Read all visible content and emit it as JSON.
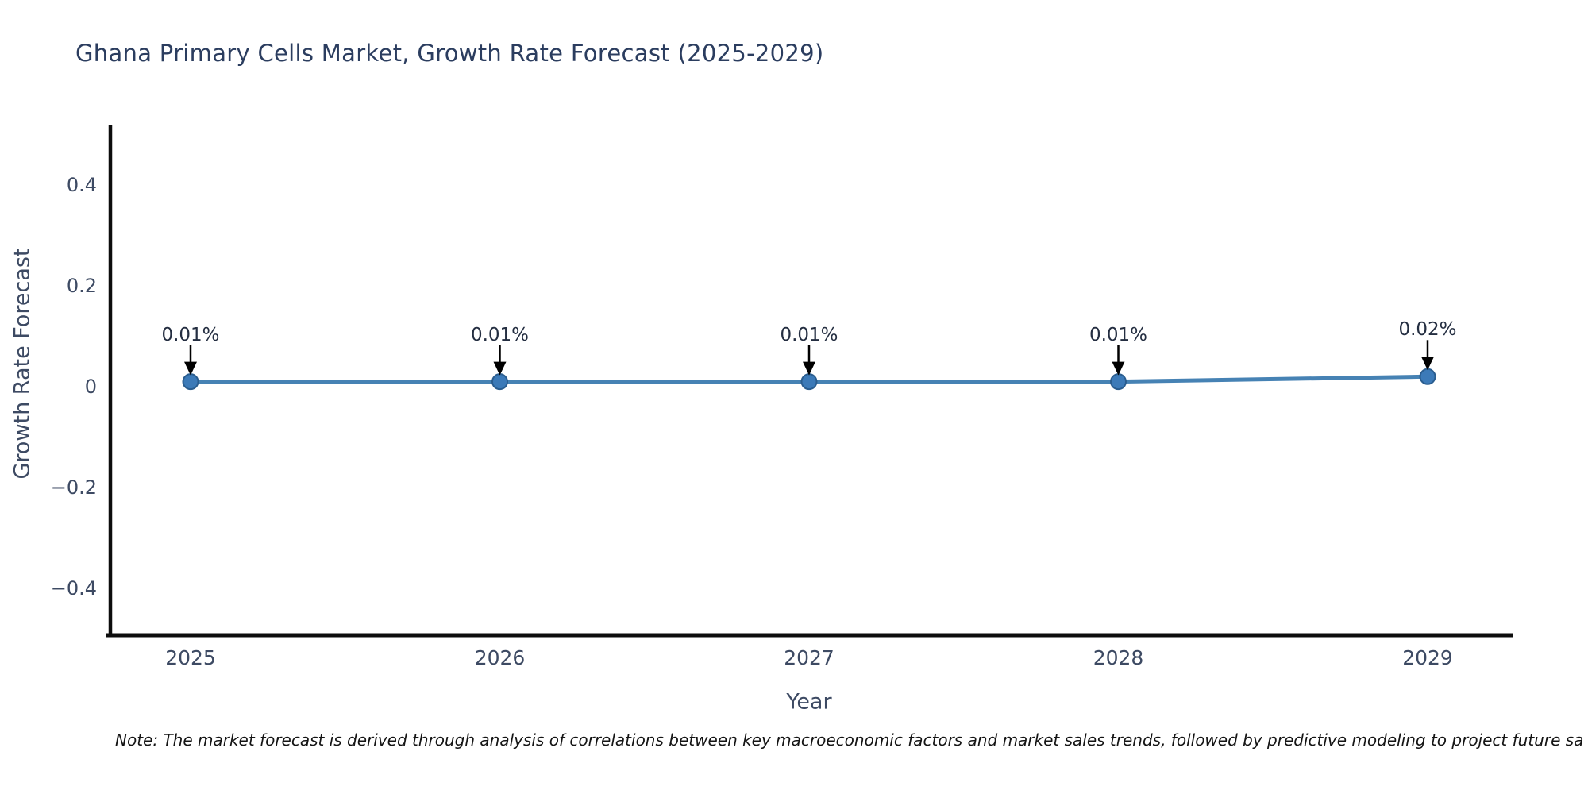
{
  "title": "Ghana Primary Cells Market, Growth Rate Forecast (2025-2029)",
  "axes": {
    "x_label": "Year",
    "y_label": "Growth Rate Forecast",
    "x_ticks": [
      "2025",
      "2026",
      "2027",
      "2028",
      "2029"
    ],
    "y_ticks": [
      "0.4",
      "0.2",
      "0",
      "−0.2",
      "−0.4"
    ]
  },
  "note": "Note: The market forecast is derived through analysis of correlations between key macroeconomic factors and market sales trends, followed by predictive modeling to project future sa",
  "colors": {
    "background": "#ffffff",
    "title": "#2b3d5f",
    "tick_label": "#3d4a63",
    "axis_spine": "#0d0d0d",
    "line": "#4682b4",
    "marker_fill": "#3c7ab8",
    "marker_edge": "#2a5d8f",
    "annotation_arrow": "#000000",
    "annotation_text": "#242e41"
  },
  "chart_data": {
    "type": "line",
    "title": "Ghana Primary Cells Market, Growth Rate Forecast (2025-2029)",
    "xlabel": "Year",
    "ylabel": "Growth Rate Forecast",
    "x": [
      2025,
      2026,
      2027,
      2028,
      2029
    ],
    "series": [
      {
        "name": "Growth Rate Forecast",
        "values": [
          0.01,
          0.01,
          0.01,
          0.01,
          0.02
        ]
      }
    ],
    "point_labels": [
      "0.01%",
      "0.01%",
      "0.01%",
      "0.01%",
      "0.02%"
    ],
    "ylim": [
      -0.49,
      0.52
    ],
    "yticks": [
      0.4,
      0.2,
      0,
      -0.2,
      -0.4
    ],
    "grid": false,
    "legend": false,
    "marker": "circle",
    "annotation_style": "value label with downward arrow to each point"
  }
}
